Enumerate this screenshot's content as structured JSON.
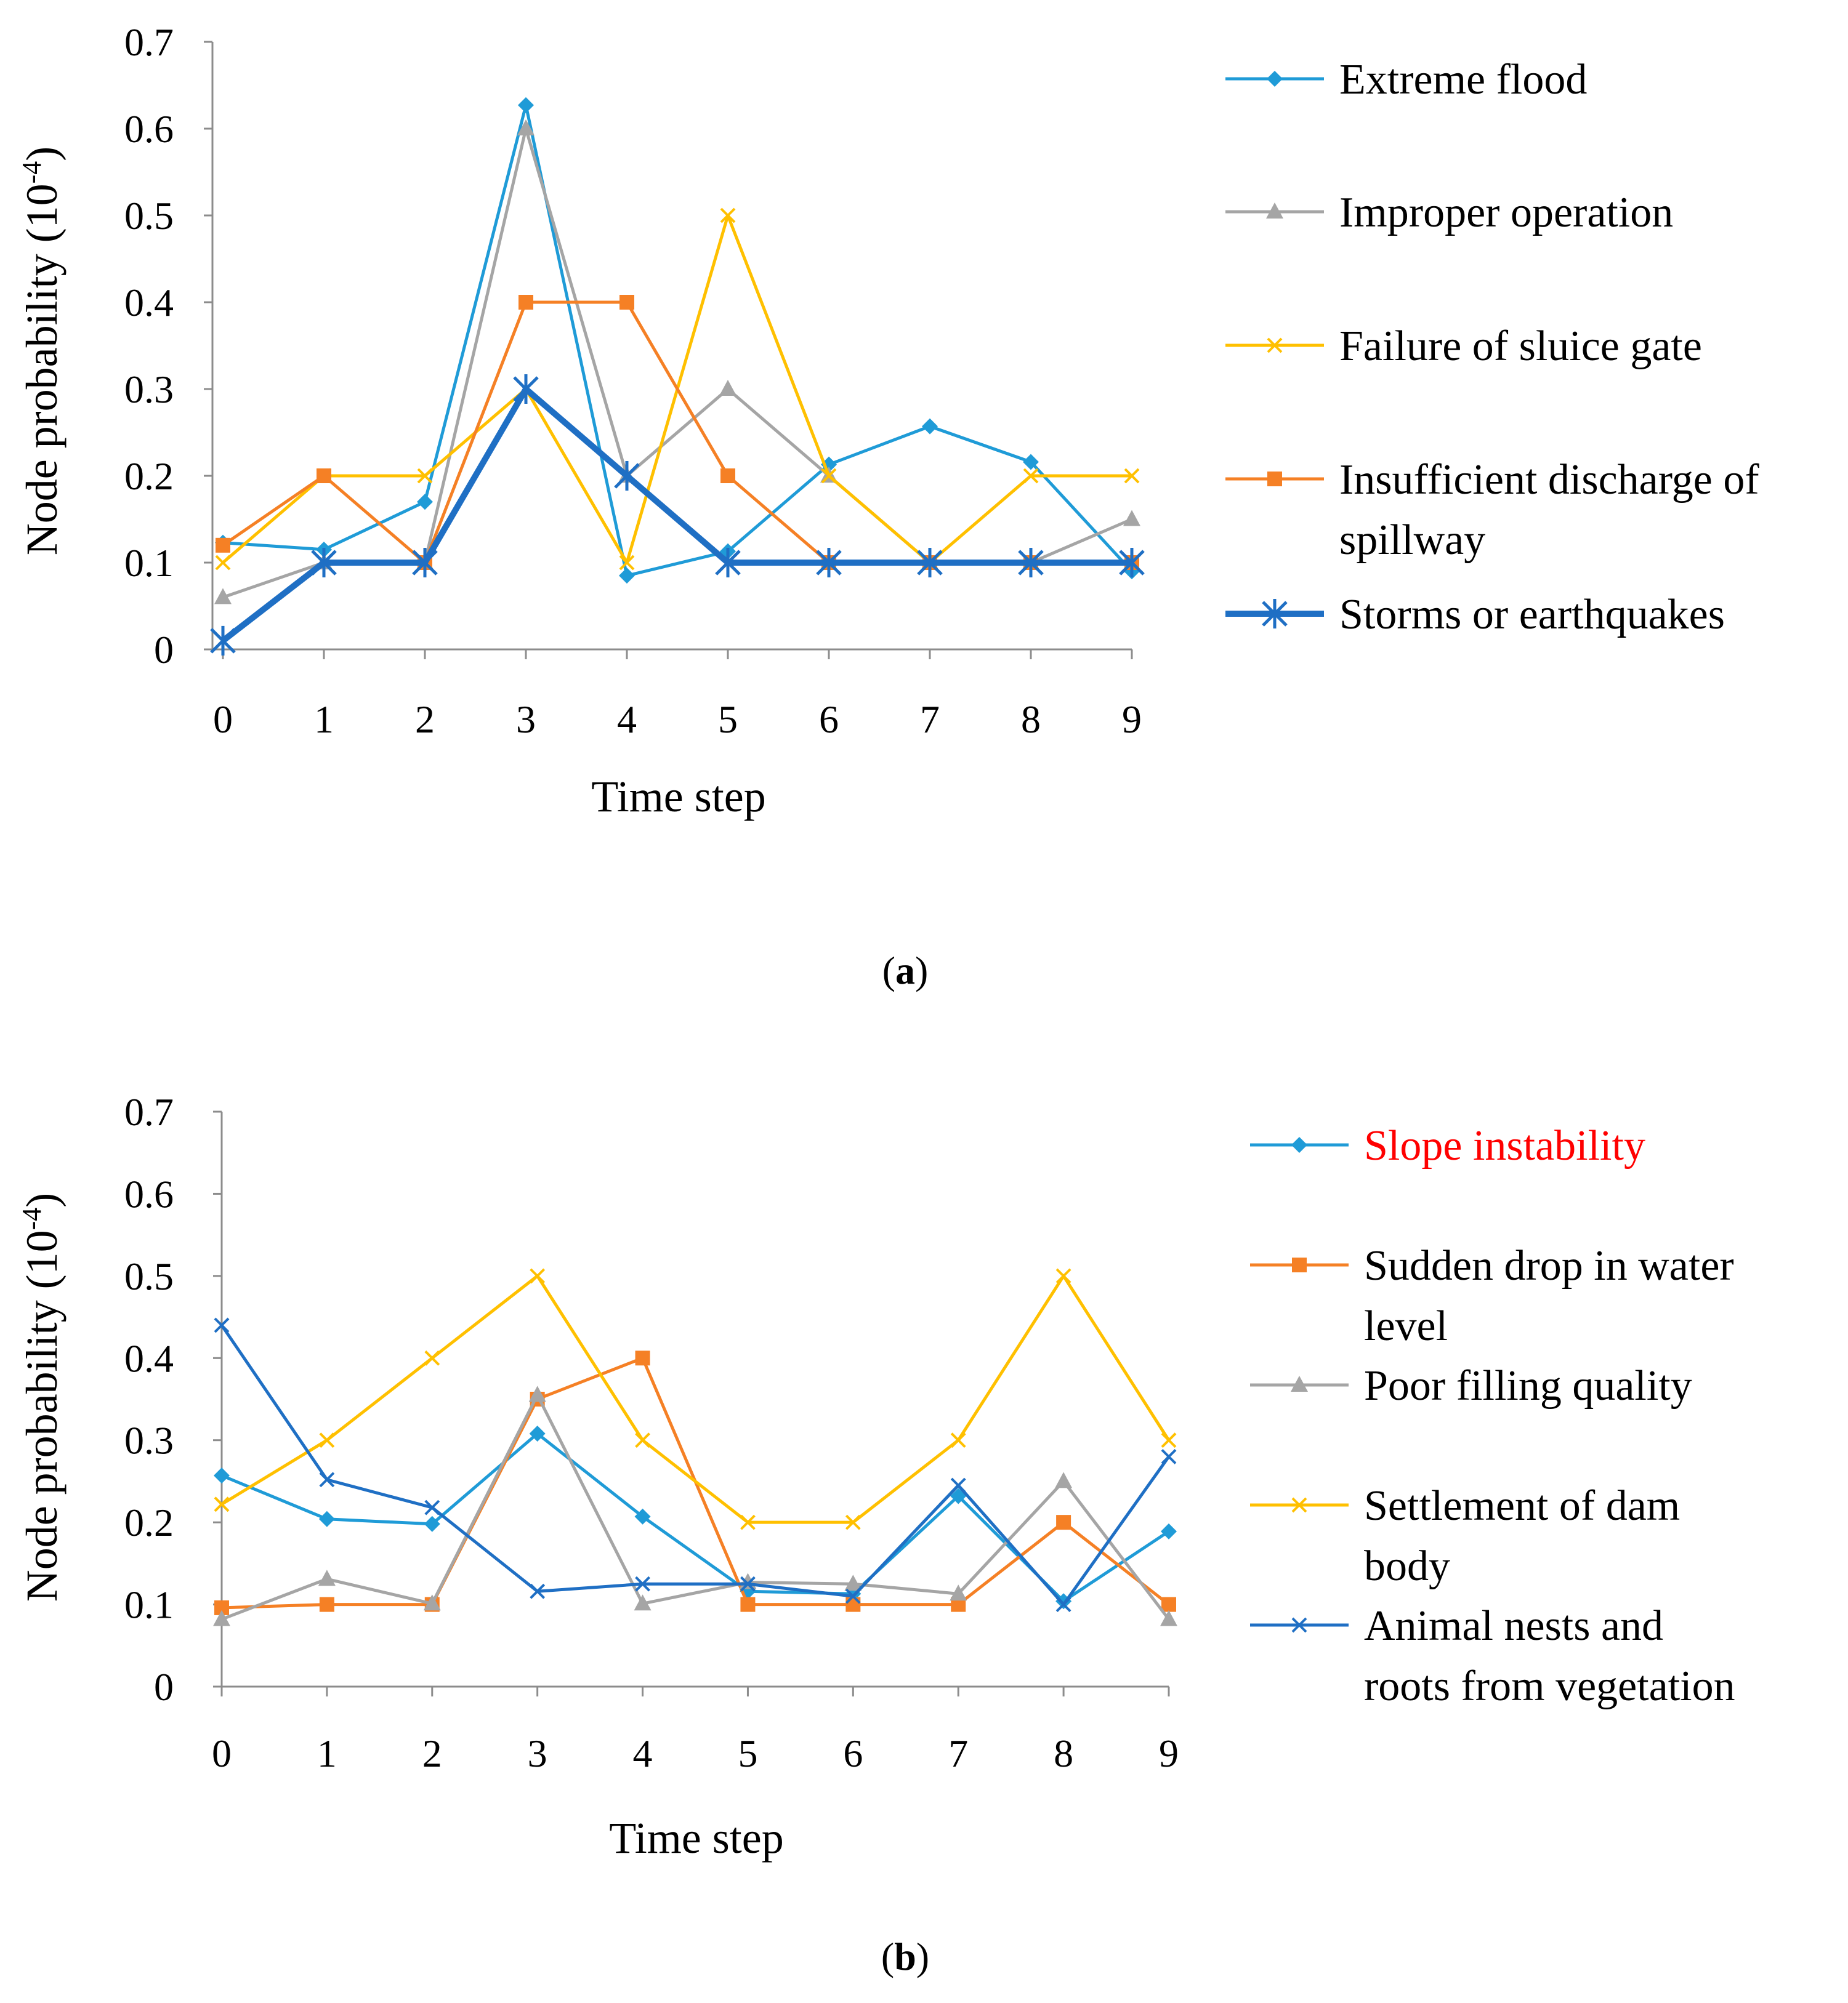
{
  "chart_data": [
    {
      "type": "line",
      "panel_label": "a",
      "xlabel": "Time step",
      "ylabel_main": "Node probability (10",
      "ylabel_exp": "-4",
      "ylabel_close": ")",
      "ylim": [
        0,
        0.7
      ],
      "yticks": [
        "0",
        "0.1",
        "0.2",
        "0.3",
        "0.4",
        "0.5",
        "0.6",
        "0.7"
      ],
      "categories": [
        "0",
        "1",
        "2",
        "3",
        "4",
        "5",
        "6",
        "7",
        "8",
        "9"
      ],
      "series": [
        {
          "name": "Extreme flood",
          "legend_lines": [
            "Extreme flood"
          ],
          "color": "#1F9BD7",
          "marker": "diamond",
          "width": 5,
          "values": [
            0.123,
            0.115,
            0.17,
            0.627,
            0.085,
            0.113,
            0.213,
            0.257,
            0.216,
            0.09
          ]
        },
        {
          "name": "Improper operation",
          "legend_lines": [
            "Improper operation"
          ],
          "color": "#A5A5A5",
          "marker": "triangle",
          "width": 5,
          "values": [
            0.06,
            0.1,
            0.1,
            0.6,
            0.2,
            0.3,
            0.2,
            0.1,
            0.1,
            0.15
          ]
        },
        {
          "name": "Failure of sluice gate",
          "legend_lines": [
            "Failure of sluice gate"
          ],
          "color": "#FFC000",
          "marker": "x",
          "width": 5,
          "values": [
            0.1,
            0.2,
            0.2,
            0.3,
            0.1,
            0.5,
            0.2,
            0.1,
            0.2,
            0.2
          ]
        },
        {
          "name": "Insufficient discharge of spillway",
          "legend_lines": [
            "Insufficient discharge of",
            "spillway"
          ],
          "color": "#F58025",
          "marker": "square",
          "width": 5,
          "values": [
            0.12,
            0.2,
            0.1,
            0.4,
            0.4,
            0.2,
            0.1,
            0.1,
            0.1,
            0.1
          ]
        },
        {
          "name": "Storms or earthquakes",
          "legend_lines": [
            "Storms or earthquakes"
          ],
          "color": "#1F6FC4",
          "marker": "star",
          "width": 10,
          "values": [
            0.01,
            0.1,
            0.1,
            0.3,
            0.2,
            0.1,
            0.1,
            0.1,
            0.1,
            0.1
          ]
        }
      ]
    },
    {
      "type": "line",
      "panel_label": "b",
      "xlabel": "Time step",
      "ylabel_main": "Node probability (10",
      "ylabel_exp": "-4",
      "ylabel_close": ")",
      "ylim": [
        0,
        0.7
      ],
      "yticks": [
        "0",
        "0.1",
        "0.2",
        "0.3",
        "0.4",
        "0.5",
        "0.6",
        "0.7"
      ],
      "categories": [
        "0",
        "1",
        "2",
        "3",
        "4",
        "5",
        "6",
        "7",
        "8",
        "9"
      ],
      "series": [
        {
          "name": "Slope instability",
          "legend_lines": [
            "Slope instability"
          ],
          "legend_text_color": "#FF0000",
          "color": "#1F9BD7",
          "marker": "diamond",
          "width": 5,
          "values": [
            0.257,
            0.204,
            0.198,
            0.308,
            0.207,
            0.116,
            0.113,
            0.232,
            0.104,
            0.189
          ]
        },
        {
          "name": "Sudden drop in water level",
          "legend_lines": [
            "Sudden drop in water",
            "level"
          ],
          "color": "#F58025",
          "marker": "square",
          "width": 5,
          "values": [
            0.096,
            0.1,
            0.1,
            0.35,
            0.4,
            0.1,
            0.1,
            0.1,
            0.2,
            0.1
          ]
        },
        {
          "name": "Poor filling quality",
          "legend_lines": [
            "Poor filling quality"
          ],
          "color": "#A5A5A5",
          "marker": "triangle",
          "width": 5,
          "values": [
            0.082,
            0.131,
            0.101,
            0.355,
            0.101,
            0.127,
            0.125,
            0.113,
            0.25,
            0.082
          ]
        },
        {
          "name": "Settlement of dam body",
          "legend_lines": [
            "Settlement of dam",
            "body"
          ],
          "color": "#FFC000",
          "marker": "x",
          "width": 5,
          "values": [
            0.222,
            0.3,
            0.4,
            0.5,
            0.3,
            0.2,
            0.2,
            0.3,
            0.5,
            0.3
          ]
        },
        {
          "name": "Animal nests and roots from vegetation",
          "legend_lines": [
            "Animal nests and",
            "roots from vegetation"
          ],
          "color": "#1F6FC4",
          "marker": "x",
          "width": 5,
          "values": [
            0.44,
            0.252,
            0.218,
            0.116,
            0.125,
            0.125,
            0.11,
            0.245,
            0.1,
            0.28
          ]
        }
      ]
    }
  ]
}
